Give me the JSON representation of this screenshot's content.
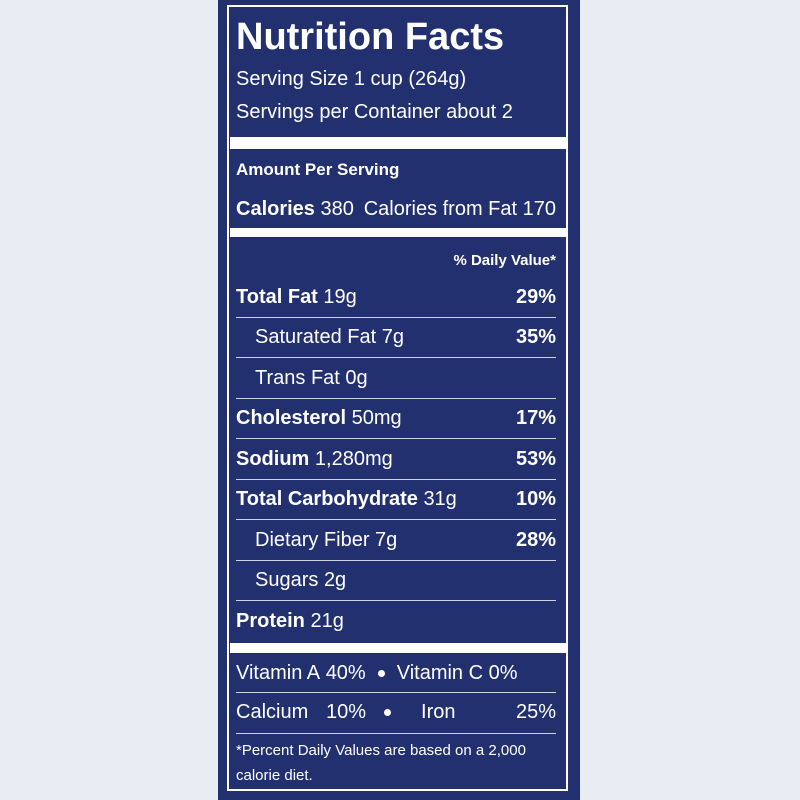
{
  "header": {
    "title": "Nutrition Facts",
    "serving_size": "Serving Size 1 cup (264g)",
    "servings": "Servings per Container about 2"
  },
  "amount_per_serving": "Amount Per Serving",
  "calories": {
    "label": "Calories",
    "value": "380",
    "from_fat": "Calories from Fat 170"
  },
  "daily_value_header": "% Daily Value*",
  "nutrients": [
    {
      "name": "Total Fat",
      "amount": "19g",
      "dv": "29%"
    },
    {
      "name": "Saturated Fat",
      "amount": "7g",
      "dv": "35%"
    },
    {
      "name": "Trans Fat",
      "amount": "0g"
    },
    {
      "name": "Cholesterol",
      "amount": "50mg",
      "dv": "17%"
    },
    {
      "name": "Sodium",
      "amount": "1,280mg",
      "dv": "53%"
    },
    {
      "name": "Total Carbohydrate",
      "amount": "31g",
      "dv": "10%"
    },
    {
      "name": "Dietary Fiber",
      "amount": "7g",
      "dv": "28%"
    },
    {
      "name": "Sugars",
      "amount": "2g"
    },
    {
      "name": "Protein",
      "amount": "21g"
    }
  ],
  "vitamins": [
    {
      "name": "Vitamin A",
      "dv": "40%"
    },
    {
      "name": "Vitamin C",
      "dv": "0%"
    },
    {
      "name": "Calcium",
      "dv": "10%"
    },
    {
      "name": "Iron",
      "dv": "25%"
    }
  ],
  "footnote": "*Percent Daily Values are based on a 2,000 calorie diet."
}
